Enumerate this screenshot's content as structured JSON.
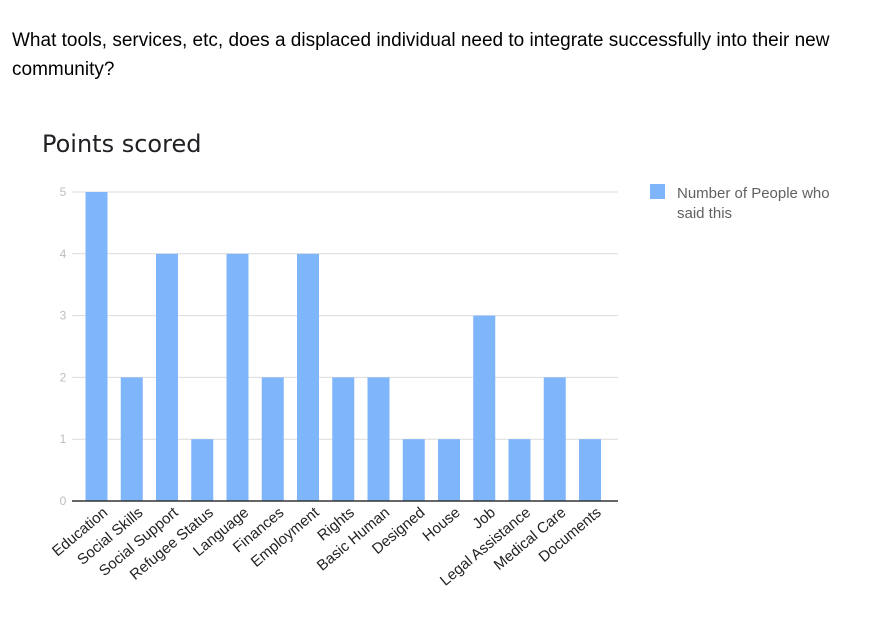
{
  "question": "What tools, services, etc,  does a displaced individual need to integrate successfully into their new community?",
  "colors": {
    "bar": "#7fb5fb",
    "grid": "#dcdcdc",
    "axis": "#333333"
  },
  "chart_data": {
    "type": "bar",
    "title": "Points scored",
    "xlabel": "",
    "ylabel": "",
    "categories": [
      "Education",
      "Social Skills",
      "Social Support",
      "Refugee Status",
      "Language",
      "Finances",
      "Employment",
      "Rights",
      "Basic Human",
      "Designed",
      "House",
      "Job",
      "Legal Assistance",
      "Medical Care",
      "Documents"
    ],
    "series": [
      {
        "name": "Number of People who said this",
        "values": [
          5,
          2,
          4,
          1,
          4,
          2,
          4,
          2,
          2,
          1,
          1,
          3,
          1,
          2,
          1
        ]
      }
    ],
    "ylim": [
      0,
      5
    ],
    "yticks": [
      "0",
      "1",
      "2",
      "3",
      "4",
      "5"
    ],
    "grid": true,
    "legend": {
      "position": "right",
      "lines": [
        "Number of People who",
        "said this"
      ]
    }
  }
}
